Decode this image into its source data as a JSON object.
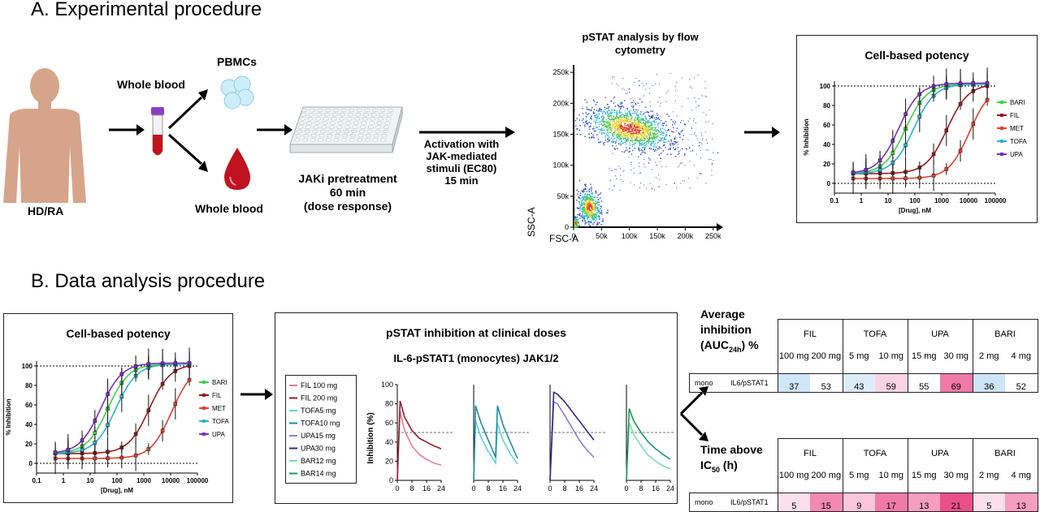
{
  "section_a": {
    "title": "A.  Experimental procedure",
    "subject_label": "HD/RA",
    "whole_blood_label": "Whole blood",
    "pbmcs_label": "PBMCs",
    "whole_blood_drop_label": "Whole blood",
    "pretreatment_lines": [
      "JAKi pretreatment",
      "60 min",
      "(dose response)"
    ],
    "activation_lines": [
      "Activation with",
      "JAK-mediated",
      "stimuli (EC80)",
      "15 min"
    ],
    "flow": {
      "title_lines": [
        "pSTAT analysis by flow",
        "cytometry"
      ],
      "xlabel": "FSC-A",
      "ylabel": "SSC-A",
      "x_ticks": [
        "0",
        "50k",
        "100k",
        "150k",
        "200k",
        "250k"
      ],
      "y_ticks": [
        "0",
        "50k",
        "100k",
        "150k",
        "200k",
        "250k"
      ]
    },
    "potency_title": "Cell-based potency"
  },
  "section_b": {
    "title": "B.  Data analysis procedure",
    "potency_title": "Cell-based potency",
    "pstat_title": "pSTAT inhibition at clinical doses",
    "pstat_subtitle": "IL-6-pSTAT1 (monocytes) JAK1/2",
    "pk_ylabel": "Inhibition (%)",
    "pk_y_ticks": [
      "0",
      "20",
      "40",
      "60",
      "80",
      "100"
    ],
    "pk_x_ticks": [
      "0",
      "8",
      "16",
      "24"
    ],
    "pk_legend": [
      {
        "label": "FIL 100 mg",
        "color": "#e57f88"
      },
      {
        "label": "FIL 200 mg",
        "color": "#9a1c2c"
      },
      {
        "label": "TOFA5 mg",
        "color": "#5fd3e0"
      },
      {
        "label": "TOFA10 mg",
        "color": "#1f8aa8"
      },
      {
        "label": "UPA15 mg",
        "color": "#8d7be0"
      },
      {
        "label": "UPA30 mg",
        "color": "#3a2585"
      },
      {
        "label": "BAR12 mg",
        "color": "#77dfb0"
      },
      {
        "label": "BAR14 mg",
        "color": "#1a9a5a"
      }
    ],
    "avg_label_lines": [
      "Average",
      "inhibition",
      "(AUC",
      "24h",
      ") %"
    ],
    "time_label_lines": [
      "Time above",
      "IC",
      "50",
      " (h)"
    ],
    "drugs": [
      "FIL",
      "TOFA",
      "UPA",
      "BARI"
    ],
    "doses": [
      "100 mg",
      "200 mg",
      "5 mg",
      "10 mg",
      "15 mg",
      "30 mg",
      "2 mg",
      "4 mg"
    ],
    "row_labels": [
      "mono",
      "IL6/pSTAT1"
    ],
    "avg_values": [
      "37",
      "53",
      "43",
      "59",
      "55",
      "69",
      "36",
      "52"
    ],
    "avg_colors": [
      "#cfe6f8",
      "#ffffff",
      "#dcedf9",
      "#fbd3e4",
      "#ffffff",
      "#ef7aa7",
      "#cde5f7",
      "#ffffff"
    ],
    "time_values": [
      "5",
      "15",
      "9",
      "17",
      "13",
      "21",
      "5",
      "13"
    ],
    "time_colors": [
      "#fde0ec",
      "#f189b2",
      "#fbc6db",
      "#ef7aa7",
      "#f59ec0",
      "#e9508b",
      "#fde0ec",
      "#f59ec0"
    ]
  },
  "chart_data": [
    {
      "type": "line",
      "title": "Cell-based potency",
      "xlabel": "[Drug], nM",
      "ylabel": "% Inhibition",
      "x_scale": "log",
      "x_ticks": [
        "0.1",
        "1",
        "10",
        "100",
        "1000",
        "10000",
        "100000"
      ],
      "y_ticks": [
        "0",
        "20",
        "40",
        "60",
        "80",
        "100"
      ],
      "xlim": [
        0.1,
        100000
      ],
      "ylim": [
        -10,
        105
      ],
      "legend_placement": "right",
      "series": [
        {
          "name": "BARI",
          "color": "#3fd14a",
          "ic50": 45,
          "bottom": 10,
          "top": 102
        },
        {
          "name": "FIL",
          "color": "#9a1c1c",
          "ic50": 1600,
          "bottom": 10,
          "top": 102
        },
        {
          "name": "MET",
          "color": "#e63e2c",
          "ic50": 11000,
          "bottom": 5,
          "top": 101
        },
        {
          "name": "TOFA",
          "color": "#2bb3cc",
          "ic50": 90,
          "bottom": 10,
          "top": 102
        },
        {
          "name": "UPA",
          "color": "#7b2fc4",
          "ic50": 25,
          "bottom": 10,
          "top": 103
        }
      ]
    },
    {
      "type": "line",
      "title": "pSTAT inhibition at clinical doses",
      "xlabel": "",
      "ylabel": "Inhibition (%)",
      "xlim": [
        0,
        24
      ],
      "ylim": [
        0,
        100
      ],
      "threshold": 50,
      "panels": [
        {
          "series": [
            {
              "name": "FIL 100 mg",
              "color": "#e57f88",
              "x": [
                0,
                1.5,
                4,
                8,
                12,
                16,
                20,
                24
              ],
              "y": [
                0,
                72,
                52,
                36,
                27,
                22,
                18,
                16
              ]
            },
            {
              "name": "FIL 200 mg",
              "color": "#9a1c2c",
              "x": [
                0,
                1.5,
                4,
                8,
                12,
                16,
                20,
                24
              ],
              "y": [
                0,
                83,
                66,
                52,
                44,
                40,
                36,
                33
              ]
            }
          ]
        },
        {
          "series": [
            {
              "name": "TOFA5 mg",
              "color": "#5fd3e0",
              "x": [
                0,
                1,
                4,
                8,
                12,
                13,
                16,
                20,
                24
              ],
              "y": [
                0,
                62,
                45,
                30,
                18,
                60,
                42,
                28,
                17
              ]
            },
            {
              "name": "TOFA10 mg",
              "color": "#1f8aa8",
              "x": [
                0,
                1,
                4,
                8,
                12,
                13,
                16,
                20,
                24
              ],
              "y": [
                0,
                78,
                60,
                42,
                24,
                78,
                58,
                40,
                23
              ]
            }
          ]
        },
        {
          "series": [
            {
              "name": "UPA15 mg",
              "color": "#8d7be0",
              "x": [
                0,
                2,
                4,
                8,
                12,
                16,
                20,
                24
              ],
              "y": [
                0,
                82,
                80,
                68,
                55,
                42,
                32,
                24
              ]
            },
            {
              "name": "UPA30 mg",
              "color": "#3a2585",
              "x": [
                0,
                2,
                4,
                8,
                12,
                16,
                20,
                24
              ],
              "y": [
                0,
                92,
                90,
                82,
                72,
                62,
                52,
                42
              ]
            }
          ]
        },
        {
          "series": [
            {
              "name": "BAR12 mg",
              "color": "#77dfb0",
              "x": [
                0,
                1.5,
                4,
                8,
                12,
                16,
                20,
                24
              ],
              "y": [
                0,
                60,
                48,
                36,
                26,
                20,
                15,
                12
              ]
            },
            {
              "name": "BAR14 mg",
              "color": "#1a9a5a",
              "x": [
                0,
                1.5,
                4,
                8,
                12,
                16,
                20,
                24
              ],
              "y": [
                0,
                75,
                62,
                50,
                40,
                33,
                27,
                22
              ]
            }
          ]
        }
      ]
    }
  ]
}
